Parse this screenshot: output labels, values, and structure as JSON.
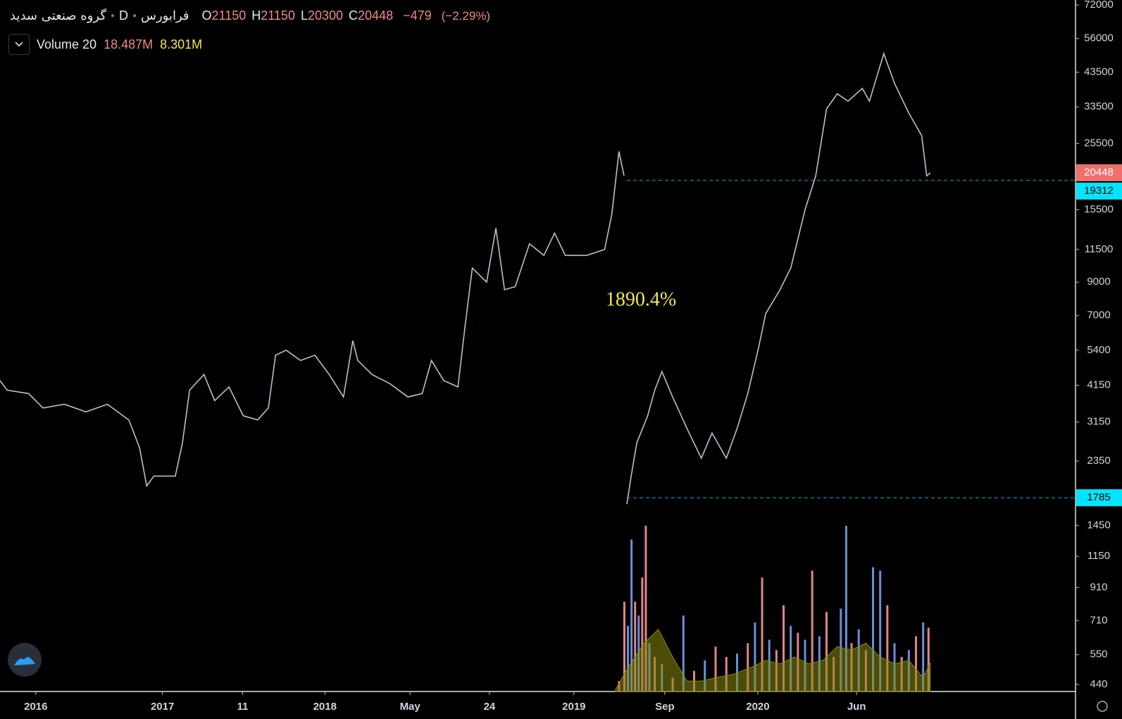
{
  "header": {
    "symbol": "گروه صنعتی سدید",
    "interval": "D",
    "exchange": "فرابورس",
    "ohlc": [
      {
        "key": "O",
        "value": 21150
      },
      {
        "key": "H",
        "value": 21150
      },
      {
        "key": "L",
        "value": 20300
      },
      {
        "key": "C",
        "value": 20448
      }
    ],
    "change": {
      "value": -479,
      "label": "−479"
    },
    "change_pct": {
      "value": -2.29,
      "label": "(−2.29%)"
    }
  },
  "chart_data": {
    "type": "line",
    "log_scale": true,
    "color": "#c9b8cc",
    "annotation": "1890.4%",
    "x": [
      0,
      2,
      8,
      12,
      18,
      24,
      30,
      36,
      39,
      41,
      43,
      49,
      51,
      53,
      57,
      60,
      64,
      68,
      72,
      75,
      77,
      80,
      84,
      88,
      92,
      96,
      98.6,
      100,
      104,
      109,
      114,
      118,
      120.6,
      124,
      128,
      130,
      132,
      136,
      138.6,
      141,
      144,
      148,
      152,
      155,
      158,
      164,
      169,
      171,
      173,
      174.4,
      null,
      175.2,
      176.4,
      178,
      181,
      183,
      185,
      188,
      192,
      196,
      199,
      203,
      206,
      209,
      212,
      214,
      218,
      221,
      225,
      228,
      231,
      234,
      237,
      241,
      243,
      247,
      250,
      254,
      257.6,
      259,
      260
    ],
    "values": [
      4300,
      4000,
      3900,
      3500,
      3600,
      3400,
      3600,
      3200,
      2600,
      1950,
      2100,
      2100,
      2700,
      4000,
      4500,
      3700,
      4100,
      3300,
      3200,
      3500,
      5200,
      5400,
      5000,
      5200,
      4500,
      3800,
      5800,
      5000,
      4500,
      4200,
      3800,
      3900,
      5000,
      4300,
      4100,
      6500,
      10000,
      9000,
      13500,
      8500,
      8700,
      12000,
      11000,
      13000,
      11000,
      11000,
      11500,
      15000,
      24000,
      20000,
      null,
      1700,
      2100,
      2700,
      3300,
      4000,
      4600,
      3800,
      3000,
      2400,
      2900,
      2400,
      3000,
      3900,
      5500,
      7100,
      8500,
      10000,
      15500,
      20000,
      33000,
      37000,
      35000,
      38500,
      35000,
      50000,
      40000,
      32000,
      27000,
      20000,
      20448
    ],
    "xlim": [
      0,
      300
    ],
    "xticks": [
      {
        "value": 10,
        "label": "2016"
      },
      {
        "value": 45.4,
        "label": "2017"
      },
      {
        "value": 67.8,
        "label": "11"
      },
      {
        "value": 90.8,
        "label": "2018"
      },
      {
        "value": 114.6,
        "label": "May"
      },
      {
        "value": 136.8,
        "label": "24"
      },
      {
        "value": 160.4,
        "label": "2019"
      },
      {
        "value": 185.8,
        "label": "Sep"
      },
      {
        "value": 211.8,
        "label": "2020"
      },
      {
        "value": 239.4,
        "label": "Jun"
      }
    ],
    "ylim": [
      417,
      74750
    ],
    "yticks": [
      72000,
      56000,
      43500,
      33500,
      25500,
      15500,
      11500,
      9000,
      7000,
      5400,
      4150,
      3150,
      2350,
      1450,
      1150,
      910,
      710,
      550,
      440
    ],
    "last_price": {
      "value": 20448,
      "color": "#ef6f6c"
    },
    "price_lines": [
      {
        "value": 19312,
        "color": "#00e5ff"
      },
      {
        "value": 1785,
        "color": "#00e5ff"
      }
    ],
    "volume": {
      "title": "Volume 20",
      "last": {
        "value": 18.487,
        "label": "18.487M"
      },
      "ma_last": {
        "value": 8.301,
        "label": "8.301M"
      },
      "vlim": [
        0,
        50
      ],
      "up_color": "#e0858a",
      "down_color": "#6a8fd8",
      "ma_color": "#8a8a10",
      "x": [
        173,
        174.5,
        175.5,
        176.5,
        177.5,
        178.5,
        179.5,
        180.5,
        181.5,
        183,
        185,
        188,
        191,
        194,
        197,
        200,
        203,
        206,
        209,
        211,
        213,
        215,
        217,
        219,
        221,
        223,
        225,
        227,
        229,
        231,
        233,
        235,
        236.5,
        238,
        240,
        242,
        244,
        246,
        248,
        250,
        252,
        254,
        256,
        258,
        259.5
      ],
      "values": [
        3,
        26,
        19,
        44,
        26,
        22,
        33,
        48,
        14,
        10,
        8,
        4,
        22,
        6,
        9,
        13,
        10,
        11,
        14,
        20,
        33,
        15,
        12,
        25,
        19,
        17,
        15,
        35,
        16,
        23,
        10,
        24,
        48,
        14,
        18,
        12,
        36,
        35,
        25,
        14,
        10,
        12,
        16,
        20,
        18.487
      ],
      "up": [
        true,
        true,
        false,
        false,
        true,
        false,
        true,
        true,
        false,
        true,
        false,
        true,
        false,
        true,
        false,
        true,
        true,
        false,
        true,
        false,
        true,
        false,
        true,
        true,
        false,
        true,
        false,
        true,
        false,
        true,
        true,
        false,
        false,
        true,
        false,
        true,
        false,
        false,
        true,
        false,
        true,
        false,
        true,
        false,
        true
      ],
      "ma_x": [
        172,
        175,
        180,
        184,
        188,
        192,
        196,
        200,
        205,
        210,
        214,
        218,
        222,
        226,
        230,
        234,
        238,
        242,
        246,
        250,
        254,
        258,
        260
      ],
      "ma": [
        0.5,
        6,
        14,
        18,
        10,
        3,
        3,
        4,
        5,
        7,
        9,
        8,
        10,
        8,
        9,
        13,
        12,
        14,
        10,
        8,
        9,
        4,
        8.301
      ]
    }
  }
}
